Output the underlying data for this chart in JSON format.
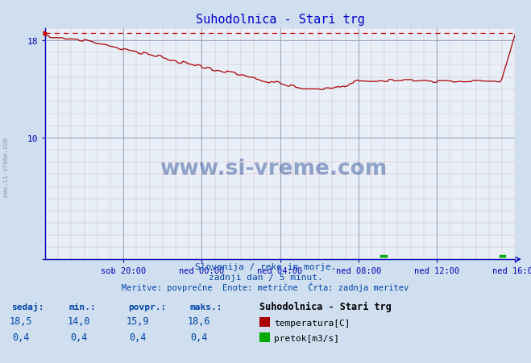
{
  "title": "Suhodolnica - Stari trg",
  "title_color": "#0000cc",
  "bg_color": "#d0dff0",
  "plot_bg_color": "#e8eff8",
  "x_labels": [
    "sob 20:00",
    "ned 00:00",
    "ned 04:00",
    "ned 08:00",
    "ned 12:00",
    "ned 16:00"
  ],
  "x_ticks_norm": [
    0.1667,
    0.3333,
    0.5,
    0.6667,
    0.8333,
    1.0
  ],
  "y_min": 0,
  "y_max": 19.0,
  "y_ticks_major": [
    0,
    10,
    18
  ],
  "temp_max_line": 18.6,
  "temp_color": "#aa0000",
  "flow_color": "#00aa00",
  "dashed_color": "#cc0000",
  "axis_color": "#0000bb",
  "text_color": "#0044aa",
  "subtitle1": "Slovenija / reke in morje.",
  "subtitle2": "zadnji dan / 5 minut.",
  "subtitle3": "Meritve: povprečne  Enote: metrične  Črta: zadnja meritev",
  "legend_title": "Suhodolnica - Stari trg",
  "legend_temp": "temperatura[C]",
  "legend_flow": "pretok[m3/s]",
  "table_headers": [
    "sedaj:",
    "min.:",
    "povpr.:",
    "maks.:"
  ],
  "table_temp": [
    "18,5",
    "14,0",
    "15,9",
    "18,6"
  ],
  "table_flow": [
    "0,4",
    "0,4",
    "0,4",
    "0,4"
  ],
  "watermark": "www.si-vreme.com",
  "side_text": "www.si-vreme.com",
  "n_points": 288
}
